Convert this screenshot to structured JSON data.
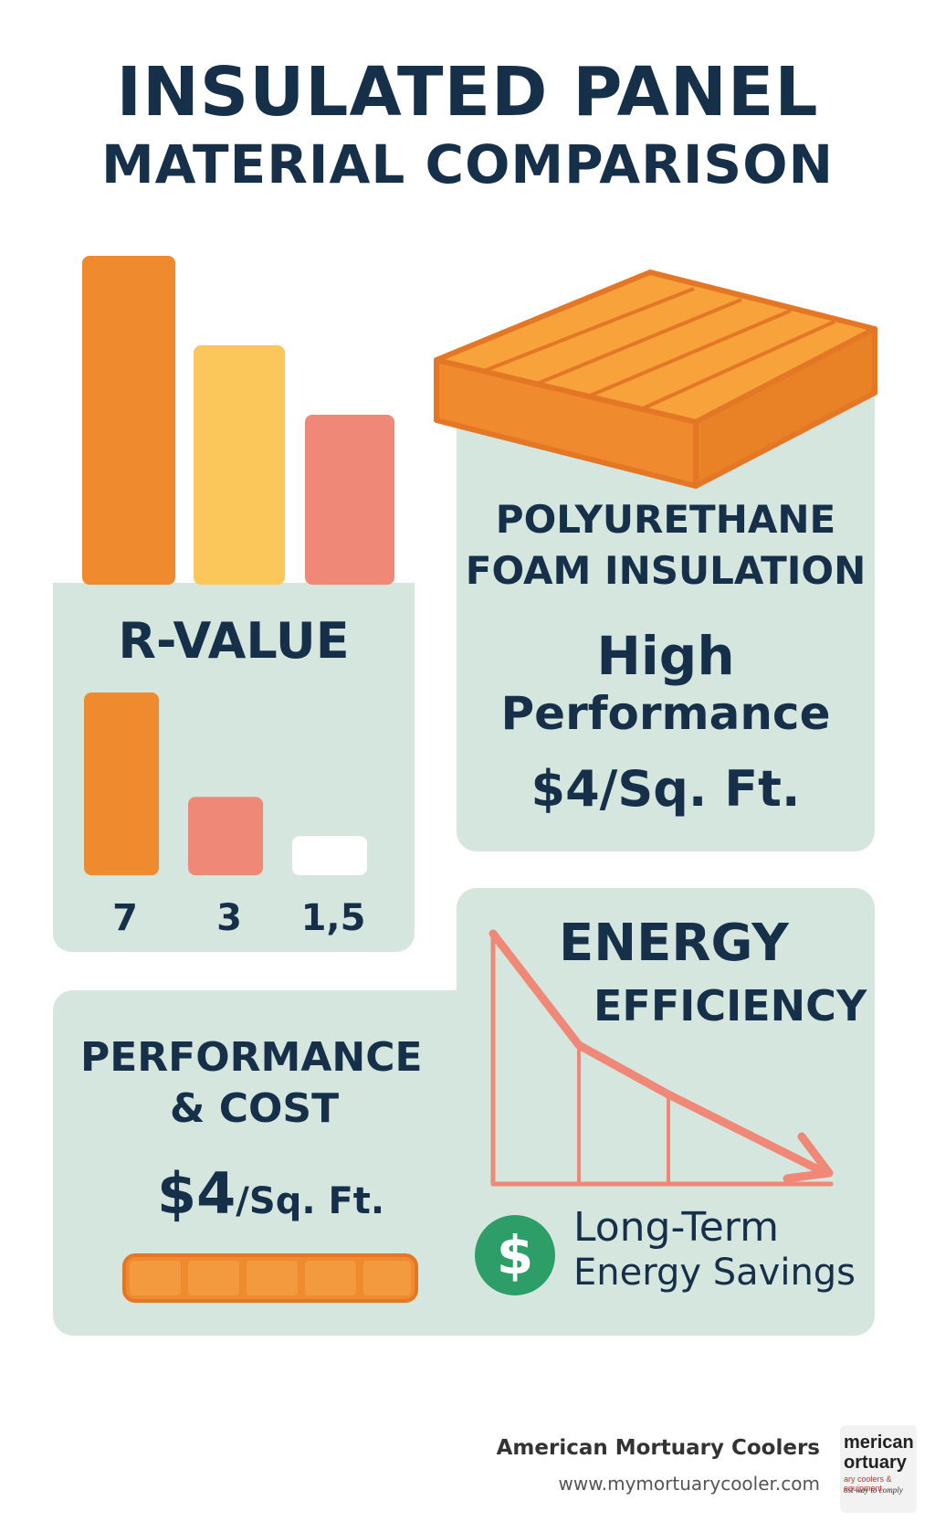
{
  "title": {
    "line1": "INSULATED PANEL",
    "line2": "MATERIAL COMPARISON"
  },
  "rvalue_card": {
    "label": "R-VALUE"
  },
  "polyurethane_card": {
    "line1": "POLYURETHANE",
    "line2": "FOAM INSULATION",
    "performance_line1": "High",
    "performance_line2": "Performance",
    "price": "$4/Sq. Ft."
  },
  "performance_card": {
    "title_line1": "PERFORMANCE",
    "title_line2": "& COST",
    "price_amount": "$4",
    "price_unit": "/Sq. Ft."
  },
  "energy_card": {
    "title_line1": "ENERGY",
    "title_line2": "EFFICIENCY",
    "savings_line1": "Long-Term",
    "savings_line2": "Energy Savings",
    "dollar_symbol": "$"
  },
  "footer": {
    "company": "American Mortuary Coolers",
    "url": "www.mymortuarycooler.com",
    "logo_line1": "merican",
    "logo_line2": "ortuary",
    "logo_line3": "ary coolers & equipment",
    "logo_line4": "ost way to comply"
  },
  "colors": {
    "orange": "#ef8a2e",
    "yellow": "#fbc75a",
    "salmon": "#f08878",
    "panel": "#d5e6de",
    "navy": "#17304a",
    "green": "#2e9e68"
  },
  "chart_data": {
    "type": "bar",
    "title": "R-VALUE",
    "categories": [
      "7",
      "3",
      "1,5"
    ],
    "values": [
      7,
      3,
      1.5
    ],
    "colors": [
      "#ef8a2e",
      "#f08878",
      "#ffffff"
    ],
    "ylim": [
      0,
      7
    ]
  }
}
